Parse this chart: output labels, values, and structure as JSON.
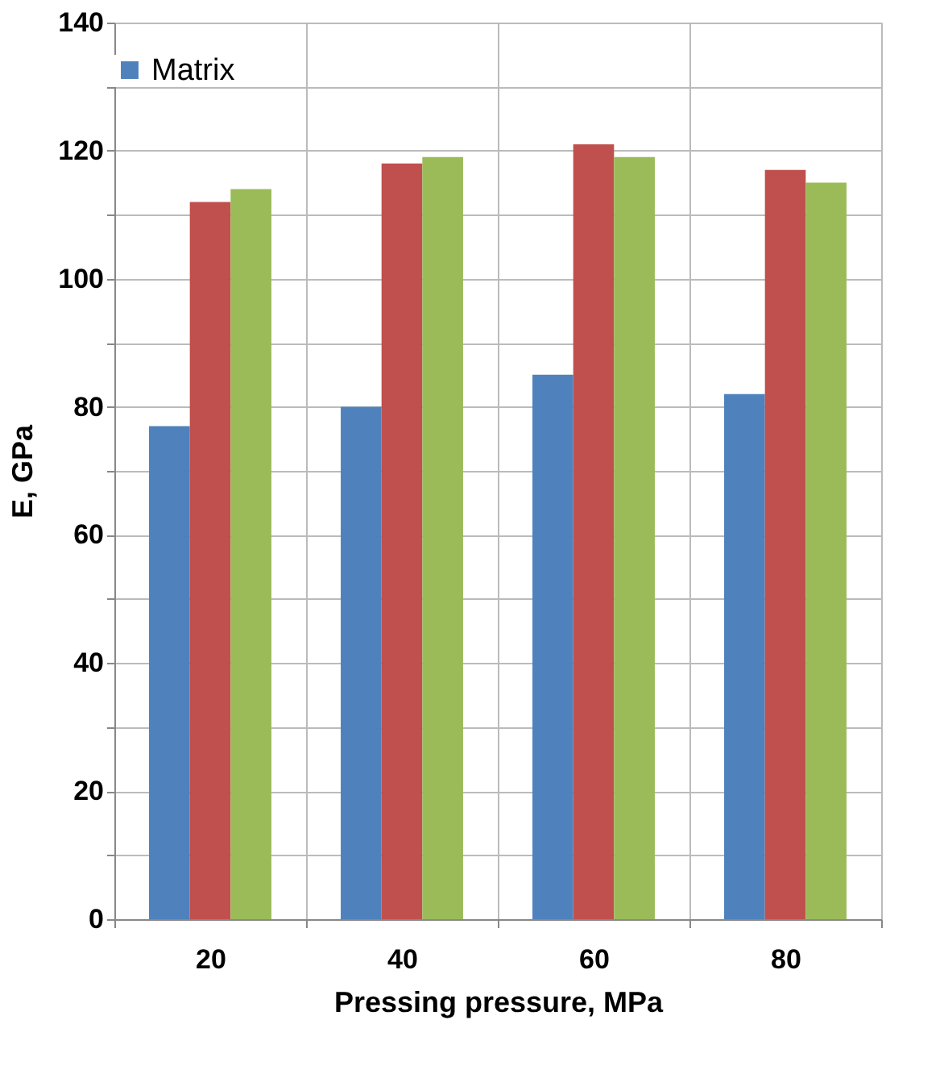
{
  "chart_data": {
    "type": "bar",
    "xlabel": "Pressing pressure, MPa",
    "ylabel": "E, GPa",
    "categories": [
      "20",
      "40",
      "60",
      "80"
    ],
    "series": [
      {
        "name": "Matrix",
        "color": "#4f81bd",
        "values": [
          77,
          80,
          85,
          82
        ]
      },
      {
        "color": "#c0504d",
        "values": [
          112,
          118,
          121,
          117
        ]
      },
      {
        "color": "#9bbb59",
        "values": [
          114,
          119,
          119,
          115
        ]
      }
    ],
    "ylim": [
      0,
      140
    ],
    "yticks": [
      0,
      {
        "value": 10,
        "label": null
      },
      20,
      {
        "value": 30,
        "label": null
      },
      40,
      {
        "value": 50,
        "label": null
      },
      60,
      {
        "value": 70,
        "label": null
      },
      80,
      {
        "value": 90,
        "label": null
      },
      100,
      {
        "value": 110,
        "label": null
      },
      120,
      {
        "value": 130,
        "label": null
      },
      140
    ],
    "grid": true,
    "legend": "top"
  }
}
